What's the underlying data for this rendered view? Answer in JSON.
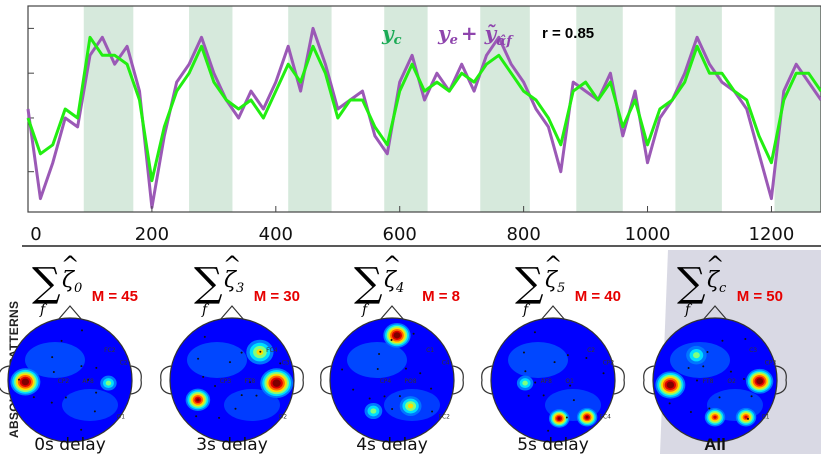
{
  "chart_data": {
    "type": "line",
    "xlim": [
      0,
      1280
    ],
    "x_ticks": [
      "0",
      "200",
      "400",
      "600",
      "800",
      "1000",
      "1200"
    ],
    "shaded_intervals": [
      [
        90,
        170
      ],
      [
        260,
        330
      ],
      [
        420,
        490
      ],
      [
        575,
        645
      ],
      [
        730,
        810
      ],
      [
        885,
        960
      ],
      [
        1045,
        1120
      ],
      [
        1205,
        1280
      ]
    ],
    "legend": {
      "series1_symbol": "y",
      "series1_sub": "c",
      "series2_symbol": "y",
      "series2_sub": "e",
      "series2_plus": "+ ỹ",
      "series2_plus_sub": "α̂f",
      "correlation": "r = 0.85"
    },
    "series": [
      {
        "color": "#9b59b6",
        "x": [
          0,
          20,
          40,
          60,
          80,
          100,
          120,
          140,
          160,
          180,
          200,
          220,
          240,
          260,
          280,
          300,
          320,
          340,
          360,
          380,
          400,
          420,
          440,
          460,
          480,
          500,
          520,
          540,
          560,
          580,
          600,
          620,
          640,
          660,
          680,
          700,
          720,
          740,
          760,
          780,
          800,
          820,
          840,
          860,
          880,
          900,
          920,
          940,
          960,
          980,
          1000,
          1020,
          1040,
          1060,
          1080,
          1100,
          1120,
          1140,
          1160,
          1180,
          1200,
          1220,
          1240,
          1260,
          1280
        ],
        "y": [
          0.1,
          -0.9,
          -0.5,
          0.0,
          -0.1,
          0.7,
          0.9,
          0.6,
          0.8,
          0.3,
          -1.0,
          -0.2,
          0.4,
          0.6,
          0.9,
          0.5,
          0.2,
          0.0,
          0.3,
          0.1,
          0.4,
          0.8,
          0.3,
          1.0,
          0.6,
          0.1,
          0.2,
          0.3,
          -0.2,
          -0.4,
          0.4,
          0.7,
          0.2,
          0.5,
          0.3,
          0.6,
          0.3,
          0.7,
          0.9,
          0.6,
          0.4,
          0.1,
          -0.1,
          -0.6,
          0.4,
          0.3,
          0.2,
          0.5,
          -0.2,
          0.3,
          -0.5,
          0.0,
          0.2,
          0.5,
          0.9,
          0.6,
          0.4,
          0.3,
          0.1,
          -0.4,
          -0.9,
          0.3,
          0.6,
          0.4,
          0.2
        ]
      },
      {
        "color": "#22ee11",
        "x": [
          0,
          20,
          40,
          60,
          80,
          100,
          120,
          140,
          160,
          180,
          200,
          220,
          240,
          260,
          280,
          300,
          320,
          340,
          360,
          380,
          400,
          420,
          440,
          460,
          480,
          500,
          520,
          540,
          560,
          580,
          600,
          620,
          640,
          660,
          680,
          700,
          720,
          740,
          760,
          780,
          800,
          820,
          840,
          860,
          880,
          900,
          920,
          940,
          960,
          980,
          1000,
          1020,
          1040,
          1060,
          1080,
          1100,
          1120,
          1140,
          1160,
          1180,
          1200,
          1220,
          1240,
          1260,
          1280
        ],
        "y": [
          0.0,
          -0.4,
          -0.3,
          0.1,
          0.0,
          0.9,
          0.7,
          0.7,
          0.6,
          0.2,
          -0.7,
          -0.1,
          0.3,
          0.5,
          0.8,
          0.4,
          0.2,
          0.1,
          0.2,
          0.0,
          0.3,
          0.6,
          0.4,
          0.8,
          0.5,
          0.0,
          0.2,
          0.2,
          -0.1,
          -0.3,
          0.3,
          0.6,
          0.3,
          0.4,
          0.3,
          0.5,
          0.4,
          0.6,
          0.7,
          0.5,
          0.3,
          0.2,
          0.0,
          -0.3,
          0.3,
          0.4,
          0.2,
          0.4,
          -0.1,
          0.2,
          -0.3,
          0.1,
          0.2,
          0.4,
          0.8,
          0.5,
          0.5,
          0.3,
          0.2,
          -0.2,
          -0.5,
          0.2,
          0.5,
          0.5,
          0.3
        ]
      }
    ]
  },
  "topomaps": [
    {
      "sum_sub": "f",
      "zeta_sub": "0",
      "m_label": "M = 45",
      "delay": "0s delay",
      "hotspots": [
        {
          "u": -0.72,
          "v": 0.03,
          "r": 0.22,
          "a": 1.0
        },
        {
          "u": 0.62,
          "v": 0.05,
          "r": 0.12,
          "a": 0.35
        }
      ]
    },
    {
      "sum_sub": "f",
      "zeta_sub": "3",
      "m_label": "M = 30",
      "delay": "3s delay",
      "hotspots": [
        {
          "u": 0.72,
          "v": 0.05,
          "r": 0.24,
          "a": 1.0
        },
        {
          "u": -0.55,
          "v": 0.32,
          "r": 0.18,
          "a": 0.85
        },
        {
          "u": 0.45,
          "v": -0.45,
          "r": 0.2,
          "a": 0.5
        }
      ]
    },
    {
      "sum_sub": "f",
      "zeta_sub": "4",
      "m_label": "M = 8",
      "delay": "4s delay",
      "hotspots": [
        {
          "u": 0.08,
          "v": -0.72,
          "r": 0.2,
          "a": 1.0
        },
        {
          "u": 0.3,
          "v": 0.42,
          "r": 0.16,
          "a": 0.5
        },
        {
          "u": -0.3,
          "v": 0.5,
          "r": 0.13,
          "a": 0.4
        }
      ]
    },
    {
      "sum_sub": "f",
      "zeta_sub": "5",
      "m_label": "M = 40",
      "delay": "5s delay",
      "hotspots": [
        {
          "u": 0.1,
          "v": 0.62,
          "r": 0.15,
          "a": 0.9
        },
        {
          "u": 0.55,
          "v": 0.6,
          "r": 0.15,
          "a": 0.9
        },
        {
          "u": -0.45,
          "v": 0.05,
          "r": 0.12,
          "a": 0.35
        }
      ]
    },
    {
      "sum_sub": "f",
      "zeta_sub": "c",
      "m_label": "M = 50",
      "delay": "All",
      "hotspots": [
        {
          "u": -0.72,
          "v": 0.08,
          "r": 0.22,
          "a": 1.0
        },
        {
          "u": 0.72,
          "v": 0.02,
          "r": 0.2,
          "a": 0.95
        },
        {
          "u": 0.0,
          "v": 0.6,
          "r": 0.15,
          "a": 0.8
        },
        {
          "u": 0.5,
          "v": 0.6,
          "r": 0.15,
          "a": 0.75
        },
        {
          "u": -0.3,
          "v": -0.4,
          "r": 0.15,
          "a": 0.4
        }
      ]
    }
  ],
  "row_label": "ABSOLUTE PATTERNS",
  "electrode_labels": [
    "FC2",
    "FC4",
    "C1",
    "C2",
    "C3",
    "C4",
    "CP2",
    "CP3",
    "CP4",
    "AF8",
    "FT8",
    "PO8",
    "O1",
    "O2"
  ]
}
